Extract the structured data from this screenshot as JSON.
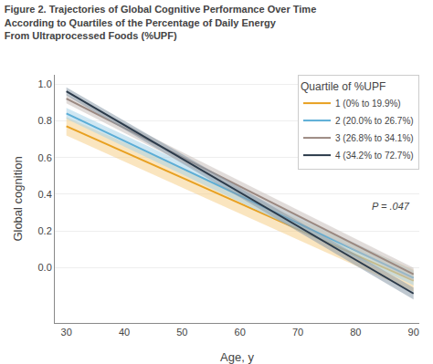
{
  "chart_data": {
    "type": "line",
    "title": "Figure 2. Trajectories of Global Cognitive Performance Over Time\nAccording to Quartiles of the Percentage of Daily Energy\nFrom Ultraprocessed Foods (%UPF)",
    "x_label": "Age, y",
    "y_label": "Global cognition",
    "x": [
      30,
      90
    ],
    "series": [
      {
        "name": "1 (0% to 19.9%)",
        "color": "#E8A020",
        "ci_color": "#F5D08A",
        "values": [
          0.77,
          -0.07
        ],
        "ci": [
          0.05,
          0.06
        ]
      },
      {
        "name": "2 (20.0% to 26.7%)",
        "color": "#5BADD6",
        "ci_color": "#A8D4EA",
        "values": [
          0.84,
          -0.055
        ],
        "ci": [
          0.03,
          0.04
        ]
      },
      {
        "name": "3 (26.8% to 34.1%)",
        "color": "#9A8880",
        "ci_color": "#C8C0BC",
        "values": [
          0.92,
          -0.035
        ],
        "ci": [
          0.025,
          0.035
        ]
      },
      {
        "name": "4 (34.2% to 72.7%)",
        "color": "#2B3A4A",
        "ci_color": "#8A9AAA",
        "values": [
          0.96,
          -0.14
        ],
        "ci": [
          0.022,
          0.032
        ]
      }
    ],
    "legend_title": "Quartile of %UPF",
    "annotation": "P = .047",
    "xlim": [
      28,
      91
    ],
    "ylim": [
      -0.3,
      1.05
    ],
    "xticks": [
      30,
      40,
      50,
      60,
      70,
      80,
      90
    ],
    "yticks": [
      {
        "value": 0.0,
        "label": "0.0"
      },
      0.2,
      0.4,
      0.6,
      0.8,
      {
        "value": 1.0,
        "label": "1.0"
      }
    ],
    "grid": "y",
    "legend": "upper right"
  }
}
